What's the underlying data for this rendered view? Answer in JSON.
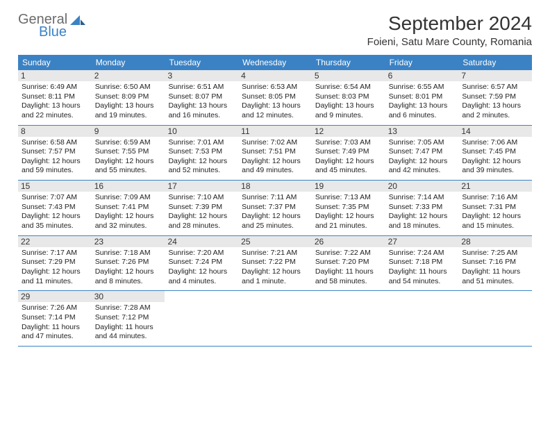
{
  "logo": {
    "word1": "General",
    "word2": "Blue"
  },
  "title": "September 2024",
  "location": "Foieni, Satu Mare County, Romania",
  "colors": {
    "header_bg": "#3b82c4",
    "header_text": "#ffffff",
    "daynum_bg": "#e8e8e8",
    "border": "#3b82c4",
    "logo_gray": "#6b6b6b",
    "logo_blue": "#3b82c4"
  },
  "days_of_week": [
    "Sunday",
    "Monday",
    "Tuesday",
    "Wednesday",
    "Thursday",
    "Friday",
    "Saturday"
  ],
  "weeks": [
    [
      {
        "n": "1",
        "sr": "6:49 AM",
        "ss": "8:11 PM",
        "dl": "13 hours and 22 minutes."
      },
      {
        "n": "2",
        "sr": "6:50 AM",
        "ss": "8:09 PM",
        "dl": "13 hours and 19 minutes."
      },
      {
        "n": "3",
        "sr": "6:51 AM",
        "ss": "8:07 PM",
        "dl": "13 hours and 16 minutes."
      },
      {
        "n": "4",
        "sr": "6:53 AM",
        "ss": "8:05 PM",
        "dl": "13 hours and 12 minutes."
      },
      {
        "n": "5",
        "sr": "6:54 AM",
        "ss": "8:03 PM",
        "dl": "13 hours and 9 minutes."
      },
      {
        "n": "6",
        "sr": "6:55 AM",
        "ss": "8:01 PM",
        "dl": "13 hours and 6 minutes."
      },
      {
        "n": "7",
        "sr": "6:57 AM",
        "ss": "7:59 PM",
        "dl": "13 hours and 2 minutes."
      }
    ],
    [
      {
        "n": "8",
        "sr": "6:58 AM",
        "ss": "7:57 PM",
        "dl": "12 hours and 59 minutes."
      },
      {
        "n": "9",
        "sr": "6:59 AM",
        "ss": "7:55 PM",
        "dl": "12 hours and 55 minutes."
      },
      {
        "n": "10",
        "sr": "7:01 AM",
        "ss": "7:53 PM",
        "dl": "12 hours and 52 minutes."
      },
      {
        "n": "11",
        "sr": "7:02 AM",
        "ss": "7:51 PM",
        "dl": "12 hours and 49 minutes."
      },
      {
        "n": "12",
        "sr": "7:03 AM",
        "ss": "7:49 PM",
        "dl": "12 hours and 45 minutes."
      },
      {
        "n": "13",
        "sr": "7:05 AM",
        "ss": "7:47 PM",
        "dl": "12 hours and 42 minutes."
      },
      {
        "n": "14",
        "sr": "7:06 AM",
        "ss": "7:45 PM",
        "dl": "12 hours and 39 minutes."
      }
    ],
    [
      {
        "n": "15",
        "sr": "7:07 AM",
        "ss": "7:43 PM",
        "dl": "12 hours and 35 minutes."
      },
      {
        "n": "16",
        "sr": "7:09 AM",
        "ss": "7:41 PM",
        "dl": "12 hours and 32 minutes."
      },
      {
        "n": "17",
        "sr": "7:10 AM",
        "ss": "7:39 PM",
        "dl": "12 hours and 28 minutes."
      },
      {
        "n": "18",
        "sr": "7:11 AM",
        "ss": "7:37 PM",
        "dl": "12 hours and 25 minutes."
      },
      {
        "n": "19",
        "sr": "7:13 AM",
        "ss": "7:35 PM",
        "dl": "12 hours and 21 minutes."
      },
      {
        "n": "20",
        "sr": "7:14 AM",
        "ss": "7:33 PM",
        "dl": "12 hours and 18 minutes."
      },
      {
        "n": "21",
        "sr": "7:16 AM",
        "ss": "7:31 PM",
        "dl": "12 hours and 15 minutes."
      }
    ],
    [
      {
        "n": "22",
        "sr": "7:17 AM",
        "ss": "7:29 PM",
        "dl": "12 hours and 11 minutes."
      },
      {
        "n": "23",
        "sr": "7:18 AM",
        "ss": "7:26 PM",
        "dl": "12 hours and 8 minutes."
      },
      {
        "n": "24",
        "sr": "7:20 AM",
        "ss": "7:24 PM",
        "dl": "12 hours and 4 minutes."
      },
      {
        "n": "25",
        "sr": "7:21 AM",
        "ss": "7:22 PM",
        "dl": "12 hours and 1 minute."
      },
      {
        "n": "26",
        "sr": "7:22 AM",
        "ss": "7:20 PM",
        "dl": "11 hours and 58 minutes."
      },
      {
        "n": "27",
        "sr": "7:24 AM",
        "ss": "7:18 PM",
        "dl": "11 hours and 54 minutes."
      },
      {
        "n": "28",
        "sr": "7:25 AM",
        "ss": "7:16 PM",
        "dl": "11 hours and 51 minutes."
      }
    ],
    [
      {
        "n": "29",
        "sr": "7:26 AM",
        "ss": "7:14 PM",
        "dl": "11 hours and 47 minutes."
      },
      {
        "n": "30",
        "sr": "7:28 AM",
        "ss": "7:12 PM",
        "dl": "11 hours and 44 minutes."
      },
      null,
      null,
      null,
      null,
      null
    ]
  ],
  "labels": {
    "sunrise": "Sunrise:",
    "sunset": "Sunset:",
    "daylight": "Daylight:"
  }
}
